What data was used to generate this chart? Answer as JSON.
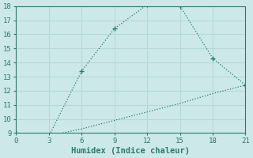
{
  "xlabel": "Humidex (Indice chaleur)",
  "line1_x": [
    0,
    3,
    6,
    9,
    12,
    15,
    18,
    21
  ],
  "line1_y": [
    9,
    8.8,
    13.4,
    16.4,
    18.1,
    18.0,
    14.3,
    12.4
  ],
  "line2_x": [
    0,
    3,
    6,
    9,
    12,
    15,
    18,
    21
  ],
  "line2_y": [
    9,
    8.8,
    9.3,
    9.9,
    10.5,
    11.1,
    11.8,
    12.4
  ],
  "line_color": "#2d7a70",
  "bg_color": "#cce8e8",
  "grid_color": "#b8d8d8",
  "xlim": [
    0,
    21
  ],
  "ylim": [
    9,
    18
  ],
  "xticks": [
    0,
    3,
    6,
    9,
    12,
    15,
    18,
    21
  ],
  "yticks": [
    9,
    10,
    11,
    12,
    13,
    14,
    15,
    16,
    17,
    18
  ],
  "tick_fontsize": 6.5,
  "xlabel_fontsize": 7.5
}
